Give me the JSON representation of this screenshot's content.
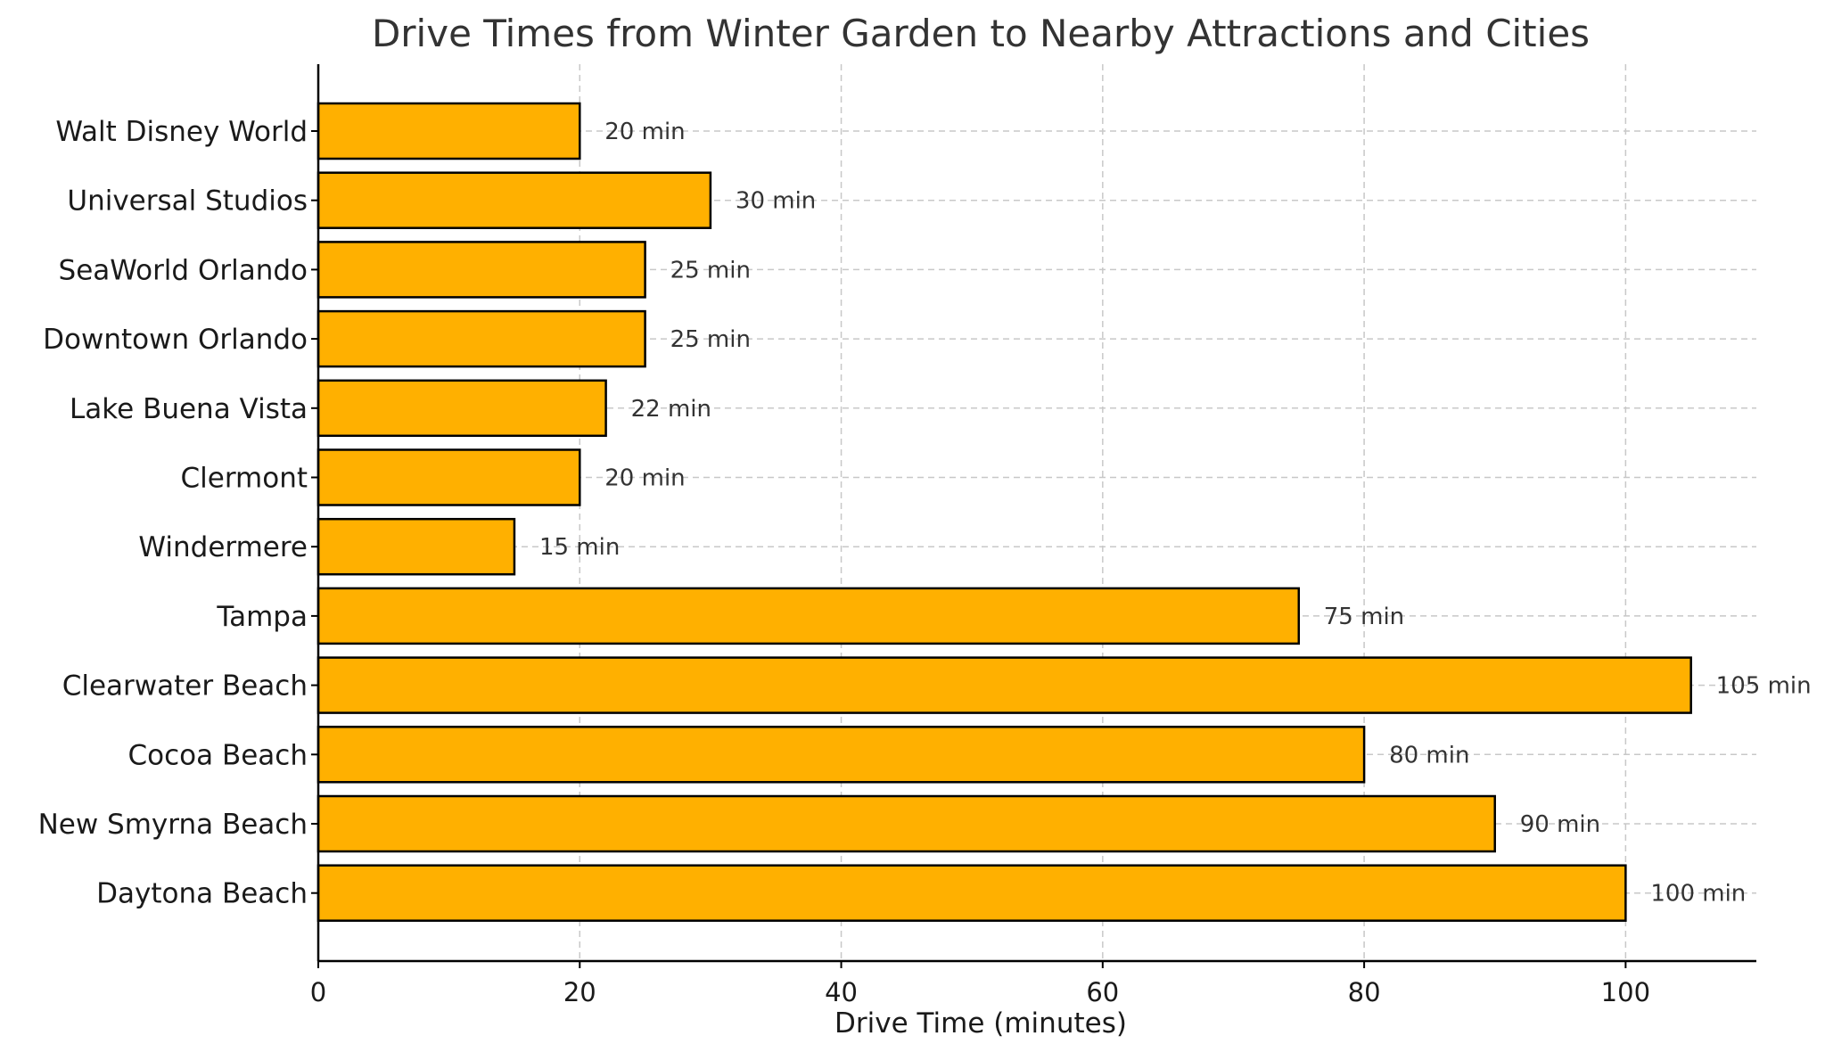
{
  "chart_data": {
    "type": "bar",
    "orientation": "horizontal",
    "title": "Drive Times from Winter Garden to Nearby Attractions and Cities",
    "xlabel": "Drive Time (minutes)",
    "ylabel": "",
    "categories": [
      "Walt Disney World",
      "Universal Studios",
      "SeaWorld Orlando",
      "Downtown Orlando",
      "Lake Buena Vista",
      "Clermont",
      "Windermere",
      "Tampa",
      "Clearwater Beach",
      "Cocoa Beach",
      "New Smyrna Beach",
      "Daytona Beach"
    ],
    "values": [
      20,
      30,
      25,
      25,
      22,
      20,
      15,
      75,
      105,
      80,
      90,
      100
    ],
    "value_labels": [
      "20 min",
      "30 min",
      "25 min",
      "25 min",
      "22 min",
      "20 min",
      "15 min",
      "75 min",
      "105 min",
      "80 min",
      "90 min",
      "100 min"
    ],
    "xlim": [
      0,
      110
    ],
    "xticks": [
      0,
      20,
      40,
      60,
      80,
      100
    ],
    "grid": true,
    "bar_color": "#ffb000",
    "edge_color": "#000000"
  }
}
